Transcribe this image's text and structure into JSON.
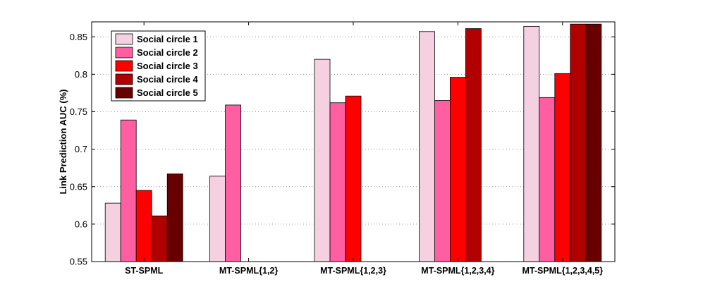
{
  "chart_data": {
    "type": "bar",
    "title": "",
    "xlabel": "",
    "ylabel": "Link Prediction AUC (%)",
    "ylim": [
      0.55,
      0.87
    ],
    "yticks": [
      0.55,
      0.6,
      0.65,
      0.7,
      0.75,
      0.8,
      0.85
    ],
    "ytick_labels": [
      "0.55",
      "0.6",
      "0.65",
      "0.7",
      "0.75",
      "0.8",
      "0.85"
    ],
    "grid": "horizontal dotted",
    "legend_position": "top-left",
    "categories": [
      "ST-SPML",
      "MT-SPML{1,2}",
      "MT-SPML{1,2,3}",
      "MT-SPML{1,2,3,4}",
      "MT-SPML{1,2,3,4,5}"
    ],
    "series": [
      {
        "name": "Social circle 1",
        "color": "#f5d0e0",
        "values": [
          0.628,
          0.664,
          0.82,
          0.857,
          0.864
        ]
      },
      {
        "name": "Social circle 2",
        "color": "#ff5fa0",
        "values": [
          0.739,
          0.759,
          0.762,
          0.765,
          0.769
        ]
      },
      {
        "name": "Social circle 3",
        "color": "#ff0000",
        "values": [
          0.645,
          null,
          0.771,
          0.796,
          0.801
        ]
      },
      {
        "name": "Social circle 4",
        "color": "#b00000",
        "values": [
          0.611,
          null,
          null,
          0.861,
          0.867
        ]
      },
      {
        "name": "Social circle 5",
        "color": "#680000",
        "values": [
          0.667,
          null,
          null,
          null,
          0.867
        ]
      }
    ]
  }
}
